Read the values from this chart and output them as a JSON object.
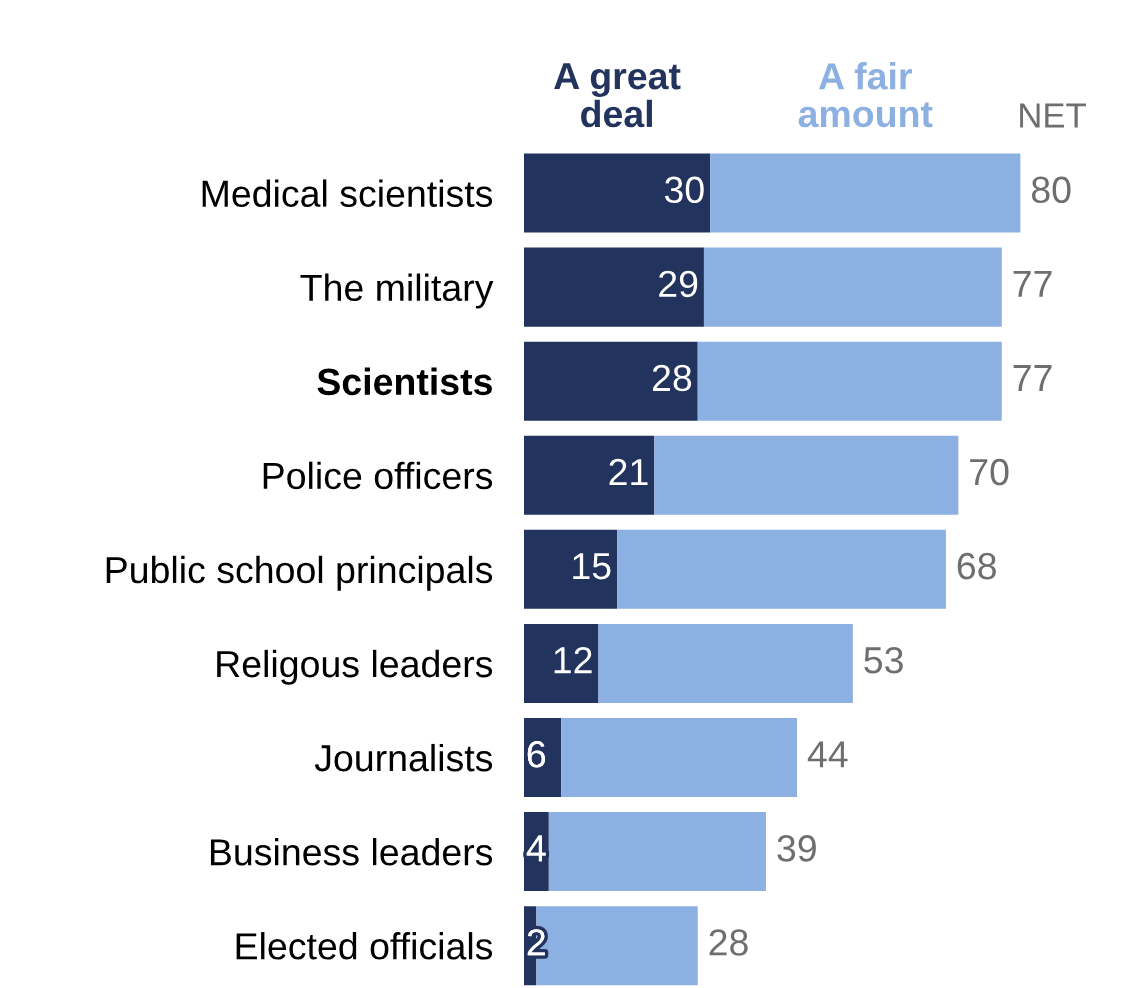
{
  "chart_data": {
    "type": "bar",
    "orientation": "horizontal",
    "stacked": true,
    "legend": "top",
    "categories": [
      "Medical scientists",
      "The military",
      "Scientists",
      "Police officers",
      "Public school principals",
      "Religous leaders",
      "Journalists",
      "Business leaders",
      "Elected officials"
    ],
    "series": [
      {
        "name": "A great deal",
        "color": "#22345e",
        "values": [
          30,
          29,
          28,
          21,
          15,
          12,
          6,
          4,
          2
        ],
        "value_labels": [
          "30",
          "29",
          "28",
          "21",
          "15",
          "12",
          "6",
          "4",
          "2"
        ]
      },
      {
        "name": "A fair amount",
        "color": "#8db0e2",
        "values": [
          50,
          48,
          49,
          49,
          53,
          41,
          38,
          35,
          26
        ]
      }
    ],
    "totals": [
      "80",
      "77",
      "77",
      "70",
      "68",
      "53",
      "44",
      "39",
      "28"
    ],
    "annotations": [
      "NET"
    ]
  }
}
